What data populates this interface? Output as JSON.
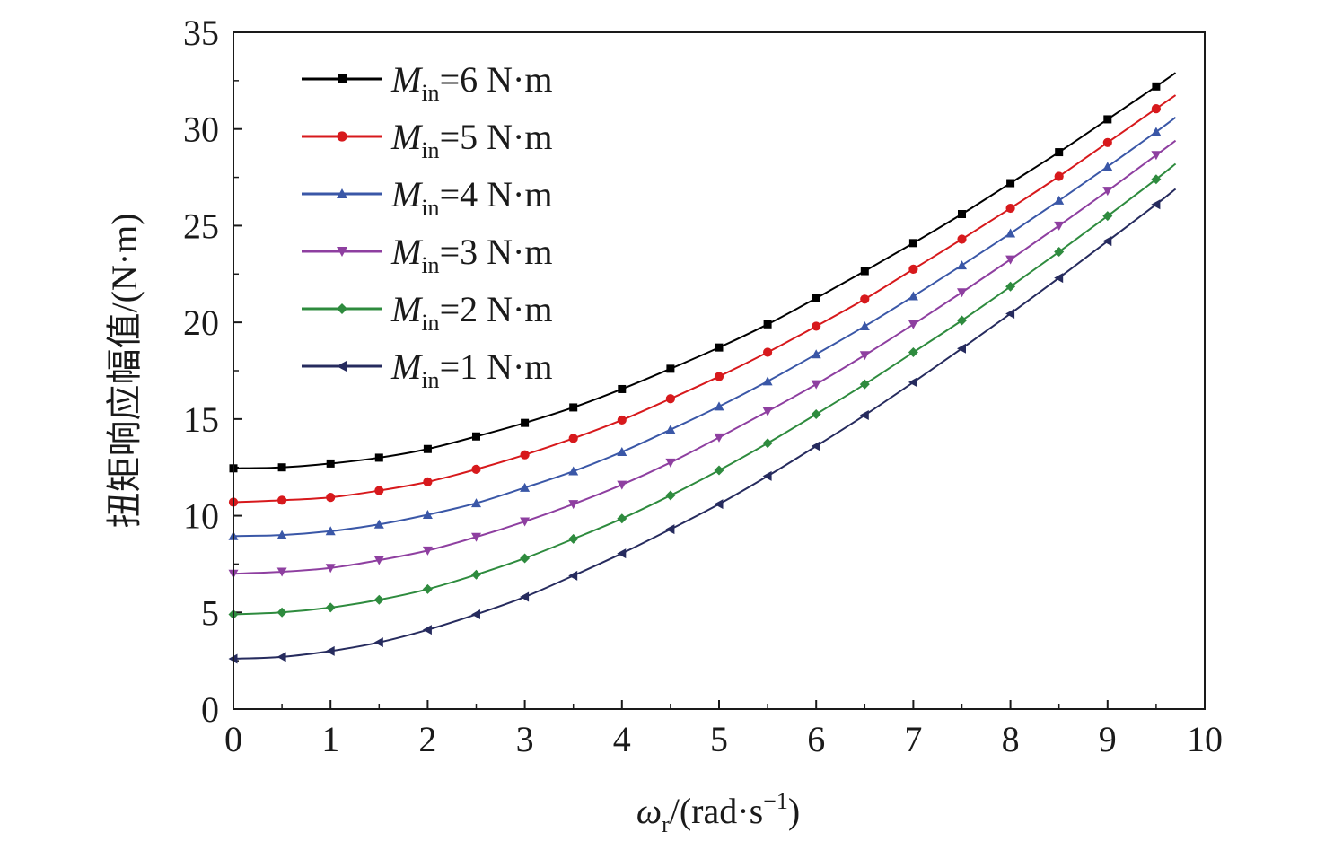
{
  "chart_data": {
    "type": "line",
    "xlabel": "ωr/(rad·s−1)",
    "xlabel_parts": {
      "symbol": "ω",
      "subscript": "r",
      "unit_open": "/(rad·s",
      "superscript": "−1",
      "unit_close": ")"
    },
    "ylabel": "扭矩响应幅值/(N·m)",
    "xlim": [
      0,
      10
    ],
    "ylim": [
      0,
      35
    ],
    "xticks": [
      "0",
      "1",
      "2",
      "3",
      "4",
      "5",
      "6",
      "7",
      "8",
      "9",
      "10"
    ],
    "yticks": [
      "0",
      "5",
      "10",
      "15",
      "20",
      "25",
      "30",
      "35"
    ],
    "grid": false,
    "legend_position": "top-left",
    "x": [
      0,
      0.5,
      1,
      1.5,
      2,
      2.5,
      3,
      3.5,
      4,
      4.5,
      5,
      5.5,
      6,
      6.5,
      7,
      7.5,
      8,
      8.5,
      9,
      9.5
    ],
    "x_end": 9.7,
    "series": [
      {
        "name": "Min=6 N·m",
        "name_parts": {
          "symbol": "M",
          "subscript": "in",
          "rest": "=6 N·m"
        },
        "color": "#000000",
        "marker": "square",
        "values": [
          12.45,
          12.5,
          12.7,
          13.0,
          13.45,
          14.1,
          14.8,
          15.6,
          16.55,
          17.6,
          18.7,
          19.9,
          21.25,
          22.65,
          24.1,
          25.6,
          27.2,
          28.8,
          30.5,
          32.2
        ],
        "end_value": 32.9
      },
      {
        "name": "Min=5 N·m",
        "name_parts": {
          "symbol": "M",
          "subscript": "in",
          "rest": "=5 N·m"
        },
        "color": "#d7191c",
        "marker": "circle",
        "values": [
          10.7,
          10.8,
          10.95,
          11.3,
          11.75,
          12.4,
          13.15,
          14.0,
          14.95,
          16.05,
          17.2,
          18.45,
          19.8,
          21.2,
          22.75,
          24.3,
          25.9,
          27.55,
          29.3,
          31.05
        ],
        "end_value": 31.75
      },
      {
        "name": "Min=4 N·m",
        "name_parts": {
          "symbol": "M",
          "subscript": "in",
          "rest": "=4 N·m"
        },
        "color": "#3a57a7",
        "marker": "triangle-up",
        "values": [
          8.95,
          9.0,
          9.2,
          9.55,
          10.05,
          10.65,
          11.45,
          12.3,
          13.3,
          14.45,
          15.65,
          16.95,
          18.35,
          19.8,
          21.35,
          22.95,
          24.6,
          26.3,
          28.05,
          29.85
        ],
        "end_value": 30.6
      },
      {
        "name": "Min=3 N·m",
        "name_parts": {
          "symbol": "M",
          "subscript": "in",
          "rest": "=3 N·m"
        },
        "color": "#8e3fa0",
        "marker": "triangle-down",
        "values": [
          7.0,
          7.1,
          7.3,
          7.7,
          8.2,
          8.9,
          9.7,
          10.6,
          11.6,
          12.75,
          14.05,
          15.4,
          16.8,
          18.3,
          19.9,
          21.55,
          23.25,
          25.0,
          26.8,
          28.65
        ],
        "end_value": 29.4
      },
      {
        "name": "Min=2 N·m",
        "name_parts": {
          "symbol": "M",
          "subscript": "in",
          "rest": "=2 N·m"
        },
        "color": "#2e8b3e",
        "marker": "diamond",
        "values": [
          4.9,
          5.0,
          5.25,
          5.65,
          6.2,
          6.95,
          7.8,
          8.8,
          9.85,
          11.05,
          12.35,
          13.75,
          15.25,
          16.8,
          18.45,
          20.1,
          21.85,
          23.65,
          25.5,
          27.4
        ],
        "end_value": 28.2
      },
      {
        "name": "Min=1 N·m",
        "name_parts": {
          "symbol": "M",
          "subscript": "in",
          "rest": "=1 N·m"
        },
        "color": "#262b5e",
        "marker": "triangle-left",
        "values": [
          2.6,
          2.7,
          3.0,
          3.45,
          4.1,
          4.9,
          5.8,
          6.9,
          8.05,
          9.3,
          10.6,
          12.05,
          13.6,
          15.2,
          16.9,
          18.65,
          20.45,
          22.3,
          24.2,
          26.1
        ],
        "end_value": 26.9
      }
    ]
  }
}
